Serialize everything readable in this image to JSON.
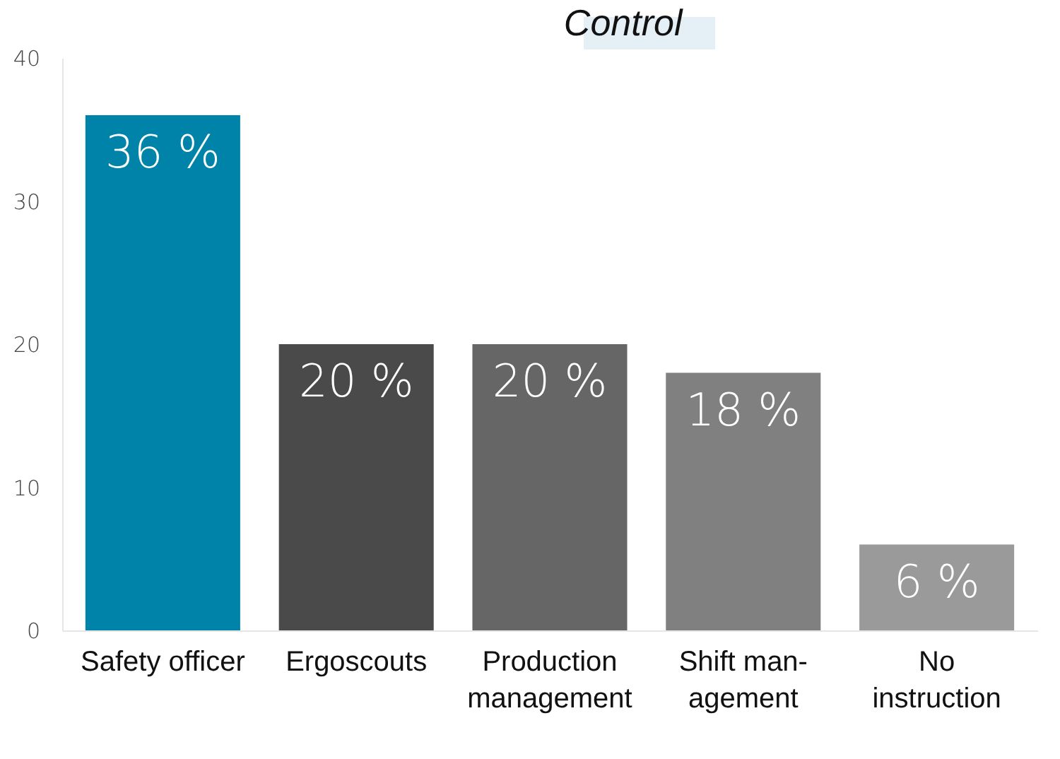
{
  "chart_data": {
    "type": "bar",
    "title": "Control",
    "categories": [
      "Safety officer",
      "Ergoscouts",
      "Production\nmanagement",
      "Shift man-\nagement",
      "No\ninstruction"
    ],
    "values": [
      36,
      20,
      20,
      18,
      6
    ],
    "colors": [
      "#0083a8",
      "#4a4a4a",
      "#666666",
      "#808080",
      "#9a9a9a"
    ],
    "value_labels": [
      "36 %",
      "20 %",
      "20 %",
      "18 %",
      "6 %"
    ],
    "ylim": [
      0,
      40
    ],
    "yticks": [
      0,
      10,
      20,
      30,
      40
    ],
    "grid": false,
    "legend": false
  }
}
